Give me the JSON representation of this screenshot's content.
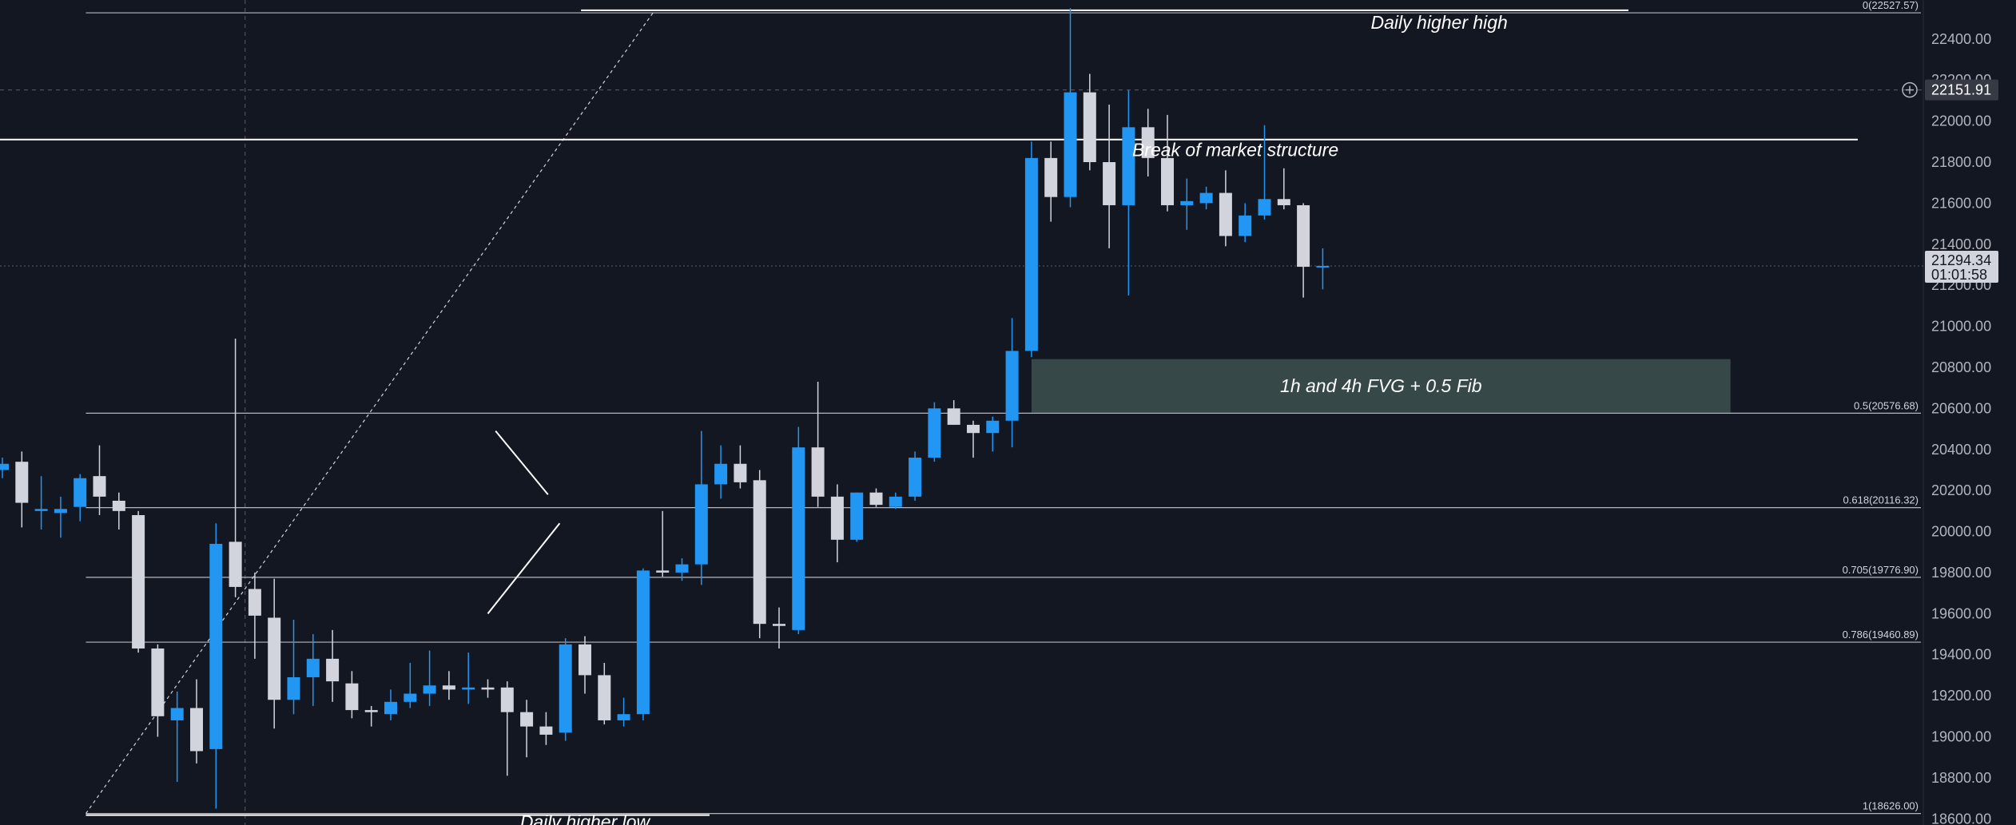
{
  "chart_data": {
    "type": "candlestick",
    "title": "",
    "xlabel": "",
    "ylabel": "",
    "ylim": [
      18570,
      22590
    ],
    "y_ticks": [
      22400,
      22200,
      22000,
      21800,
      21600,
      21400,
      21200,
      21000,
      20800,
      20600,
      20400,
      20200,
      20000,
      19800,
      19600,
      19400,
      19200,
      19000,
      18800,
      18600
    ],
    "tick_labels": [
      "22400.00",
      "22200.00",
      "22000.00",
      "21800.00",
      "21600.00",
      "21400.00",
      "21200.00",
      "21000.00",
      "20800.00",
      "20600.00",
      "20400.00",
      "20200.00",
      "20000.00",
      "19800.00",
      "19600.00",
      "19400.00",
      "19200.00",
      "19000.00",
      "18800.00",
      "18600.00"
    ],
    "colors": {
      "up": "#2196f3",
      "down": "#d1d4dc",
      "background": "#131722",
      "zone": "#445a55"
    },
    "candles": [
      {
        "o": 20300,
        "h": 20360,
        "l": 20260,
        "c": 20330
      },
      {
        "o": 20340,
        "h": 20390,
        "l": 20020,
        "c": 20140
      },
      {
        "o": 20100,
        "h": 20270,
        "l": 20010,
        "c": 20110
      },
      {
        "o": 20090,
        "h": 20170,
        "l": 19970,
        "c": 20110
      },
      {
        "o": 20120,
        "h": 20280,
        "l": 20050,
        "c": 20260
      },
      {
        "o": 20270,
        "h": 20420,
        "l": 20080,
        "c": 20170
      },
      {
        "o": 20150,
        "h": 20190,
        "l": 20010,
        "c": 20100
      },
      {
        "o": 20080,
        "h": 20100,
        "l": 19410,
        "c": 19430
      },
      {
        "o": 19430,
        "h": 19450,
        "l": 19000,
        "c": 19100
      },
      {
        "o": 19080,
        "h": 19220,
        "l": 18780,
        "c": 19140
      },
      {
        "o": 19140,
        "h": 19280,
        "l": 18870,
        "c": 18930
      },
      {
        "o": 18940,
        "h": 20040,
        "l": 18650,
        "c": 19940
      },
      {
        "o": 19950,
        "h": 20940,
        "l": 19680,
        "c": 19730
      },
      {
        "o": 19720,
        "h": 19800,
        "l": 19380,
        "c": 19590
      },
      {
        "o": 19580,
        "h": 19770,
        "l": 19040,
        "c": 19180
      },
      {
        "o": 19180,
        "h": 19570,
        "l": 19110,
        "c": 19290
      },
      {
        "o": 19290,
        "h": 19500,
        "l": 19150,
        "c": 19380
      },
      {
        "o": 19380,
        "h": 19520,
        "l": 19170,
        "c": 19270
      },
      {
        "o": 19260,
        "h": 19320,
        "l": 19090,
        "c": 19130
      },
      {
        "o": 19130,
        "h": 19150,
        "l": 19050,
        "c": 19120
      },
      {
        "o": 19110,
        "h": 19230,
        "l": 19080,
        "c": 19170
      },
      {
        "o": 19170,
        "h": 19360,
        "l": 19140,
        "c": 19210
      },
      {
        "o": 19210,
        "h": 19420,
        "l": 19150,
        "c": 19250
      },
      {
        "o": 19250,
        "h": 19320,
        "l": 19180,
        "c": 19230
      },
      {
        "o": 19230,
        "h": 19410,
        "l": 19160,
        "c": 19240
      },
      {
        "o": 19240,
        "h": 19280,
        "l": 19190,
        "c": 19230
      },
      {
        "o": 19240,
        "h": 19270,
        "l": 18810,
        "c": 19120
      },
      {
        "o": 19120,
        "h": 19180,
        "l": 18900,
        "c": 19050
      },
      {
        "o": 19050,
        "h": 19120,
        "l": 18960,
        "c": 19010
      },
      {
        "o": 19020,
        "h": 19480,
        "l": 18980,
        "c": 19450
      },
      {
        "o": 19450,
        "h": 19490,
        "l": 19210,
        "c": 19300
      },
      {
        "o": 19300,
        "h": 19360,
        "l": 19060,
        "c": 19080
      },
      {
        "o": 19080,
        "h": 19190,
        "l": 19050,
        "c": 19110
      },
      {
        "o": 19110,
        "h": 19820,
        "l": 19080,
        "c": 19810
      },
      {
        "o": 19810,
        "h": 20100,
        "l": 19780,
        "c": 19800
      },
      {
        "o": 19800,
        "h": 19870,
        "l": 19760,
        "c": 19840
      },
      {
        "o": 19840,
        "h": 20490,
        "l": 19740,
        "c": 20230
      },
      {
        "o": 20230,
        "h": 20420,
        "l": 20160,
        "c": 20330
      },
      {
        "o": 20330,
        "h": 20420,
        "l": 20210,
        "c": 20240
      },
      {
        "o": 20250,
        "h": 20300,
        "l": 19480,
        "c": 19550
      },
      {
        "o": 19550,
        "h": 19630,
        "l": 19430,
        "c": 19540
      },
      {
        "o": 19520,
        "h": 20510,
        "l": 19500,
        "c": 20410
      },
      {
        "o": 20410,
        "h": 20730,
        "l": 20120,
        "c": 20170
      },
      {
        "o": 20170,
        "h": 20230,
        "l": 19850,
        "c": 19960
      },
      {
        "o": 19960,
        "h": 20190,
        "l": 19950,
        "c": 20190
      },
      {
        "o": 20190,
        "h": 20210,
        "l": 20120,
        "c": 20130
      },
      {
        "o": 20120,
        "h": 20190,
        "l": 20110,
        "c": 20170
      },
      {
        "o": 20170,
        "h": 20390,
        "l": 20150,
        "c": 20360
      },
      {
        "o": 20360,
        "h": 20630,
        "l": 20340,
        "c": 20600
      },
      {
        "o": 20600,
        "h": 20640,
        "l": 20520,
        "c": 20520
      },
      {
        "o": 20520,
        "h": 20540,
        "l": 20360,
        "c": 20480
      },
      {
        "o": 20480,
        "h": 20560,
        "l": 20390,
        "c": 20540
      },
      {
        "o": 20540,
        "h": 21040,
        "l": 20410,
        "c": 20880
      },
      {
        "o": 20880,
        "h": 21900,
        "l": 20850,
        "c": 21820
      },
      {
        "o": 21820,
        "h": 21900,
        "l": 21510,
        "c": 21630
      },
      {
        "o": 21630,
        "h": 22550,
        "l": 21580,
        "c": 22140
      },
      {
        "o": 22140,
        "h": 22230,
        "l": 21760,
        "c": 21800
      },
      {
        "o": 21800,
        "h": 22080,
        "l": 21380,
        "c": 21590
      },
      {
        "o": 21590,
        "h": 22150,
        "l": 21150,
        "c": 21970
      },
      {
        "o": 21970,
        "h": 22060,
        "l": 21730,
        "c": 21820
      },
      {
        "o": 21820,
        "h": 22030,
        "l": 21560,
        "c": 21590
      },
      {
        "o": 21590,
        "h": 21720,
        "l": 21470,
        "c": 21610
      },
      {
        "o": 21600,
        "h": 21680,
        "l": 21570,
        "c": 21650
      },
      {
        "o": 21650,
        "h": 21760,
        "l": 21390,
        "c": 21440
      },
      {
        "o": 21440,
        "h": 21600,
        "l": 21410,
        "c": 21540
      },
      {
        "o": 21540,
        "h": 21980,
        "l": 21520,
        "c": 21620
      },
      {
        "o": 21620,
        "h": 21770,
        "l": 21570,
        "c": 21590
      },
      {
        "o": 21590,
        "h": 21600,
        "l": 21140,
        "c": 21290
      },
      {
        "o": 21290,
        "h": 21380,
        "l": 21180,
        "c": 21294.34
      }
    ],
    "fib_levels": [
      {
        "ratio": 0,
        "price": 22527.57,
        "label": "0(22527.57)"
      },
      {
        "ratio": 0.5,
        "price": 20576.68,
        "label": "0.5(20576.68)"
      },
      {
        "ratio": 0.618,
        "price": 20116.32,
        "label": "0.618(20116.32)"
      },
      {
        "ratio": 0.705,
        "price": 19776.9,
        "label": "0.705(19776.90)"
      },
      {
        "ratio": 0.786,
        "price": 19460.89,
        "label": "0.786(19460.89)"
      },
      {
        "ratio": 1,
        "price": 18626.0,
        "label": "1(18626.00)"
      }
    ],
    "horizontal_lines": [
      {
        "name": "break-of-structure-line",
        "price": 21910
      },
      {
        "name": "higher-high-line",
        "price": 22540
      }
    ],
    "zone": {
      "top": 20840,
      "bottom": 20580,
      "from_index": 53,
      "to_index": 89,
      "label": "1h and 4h FVG + 0.5 Fib"
    },
    "annotations": [
      {
        "name": "daily-higher-high-label",
        "text": "Daily higher high",
        "price": 22450,
        "at_index": 74
      },
      {
        "name": "break-of-market-structure-label",
        "text": "Break of market structure",
        "price": 21830,
        "at_index": 63.5
      },
      {
        "name": "daily-higher-low-label",
        "text": "Daily higher low",
        "price": 18555,
        "at_index": 30
      }
    ],
    "crosshair": {
      "price": 22151.91,
      "label": "22151.91",
      "at_index": 12.5
    },
    "current_price": {
      "price": 21294.34,
      "label": "21294.34",
      "countdown": "01:01:58"
    }
  }
}
